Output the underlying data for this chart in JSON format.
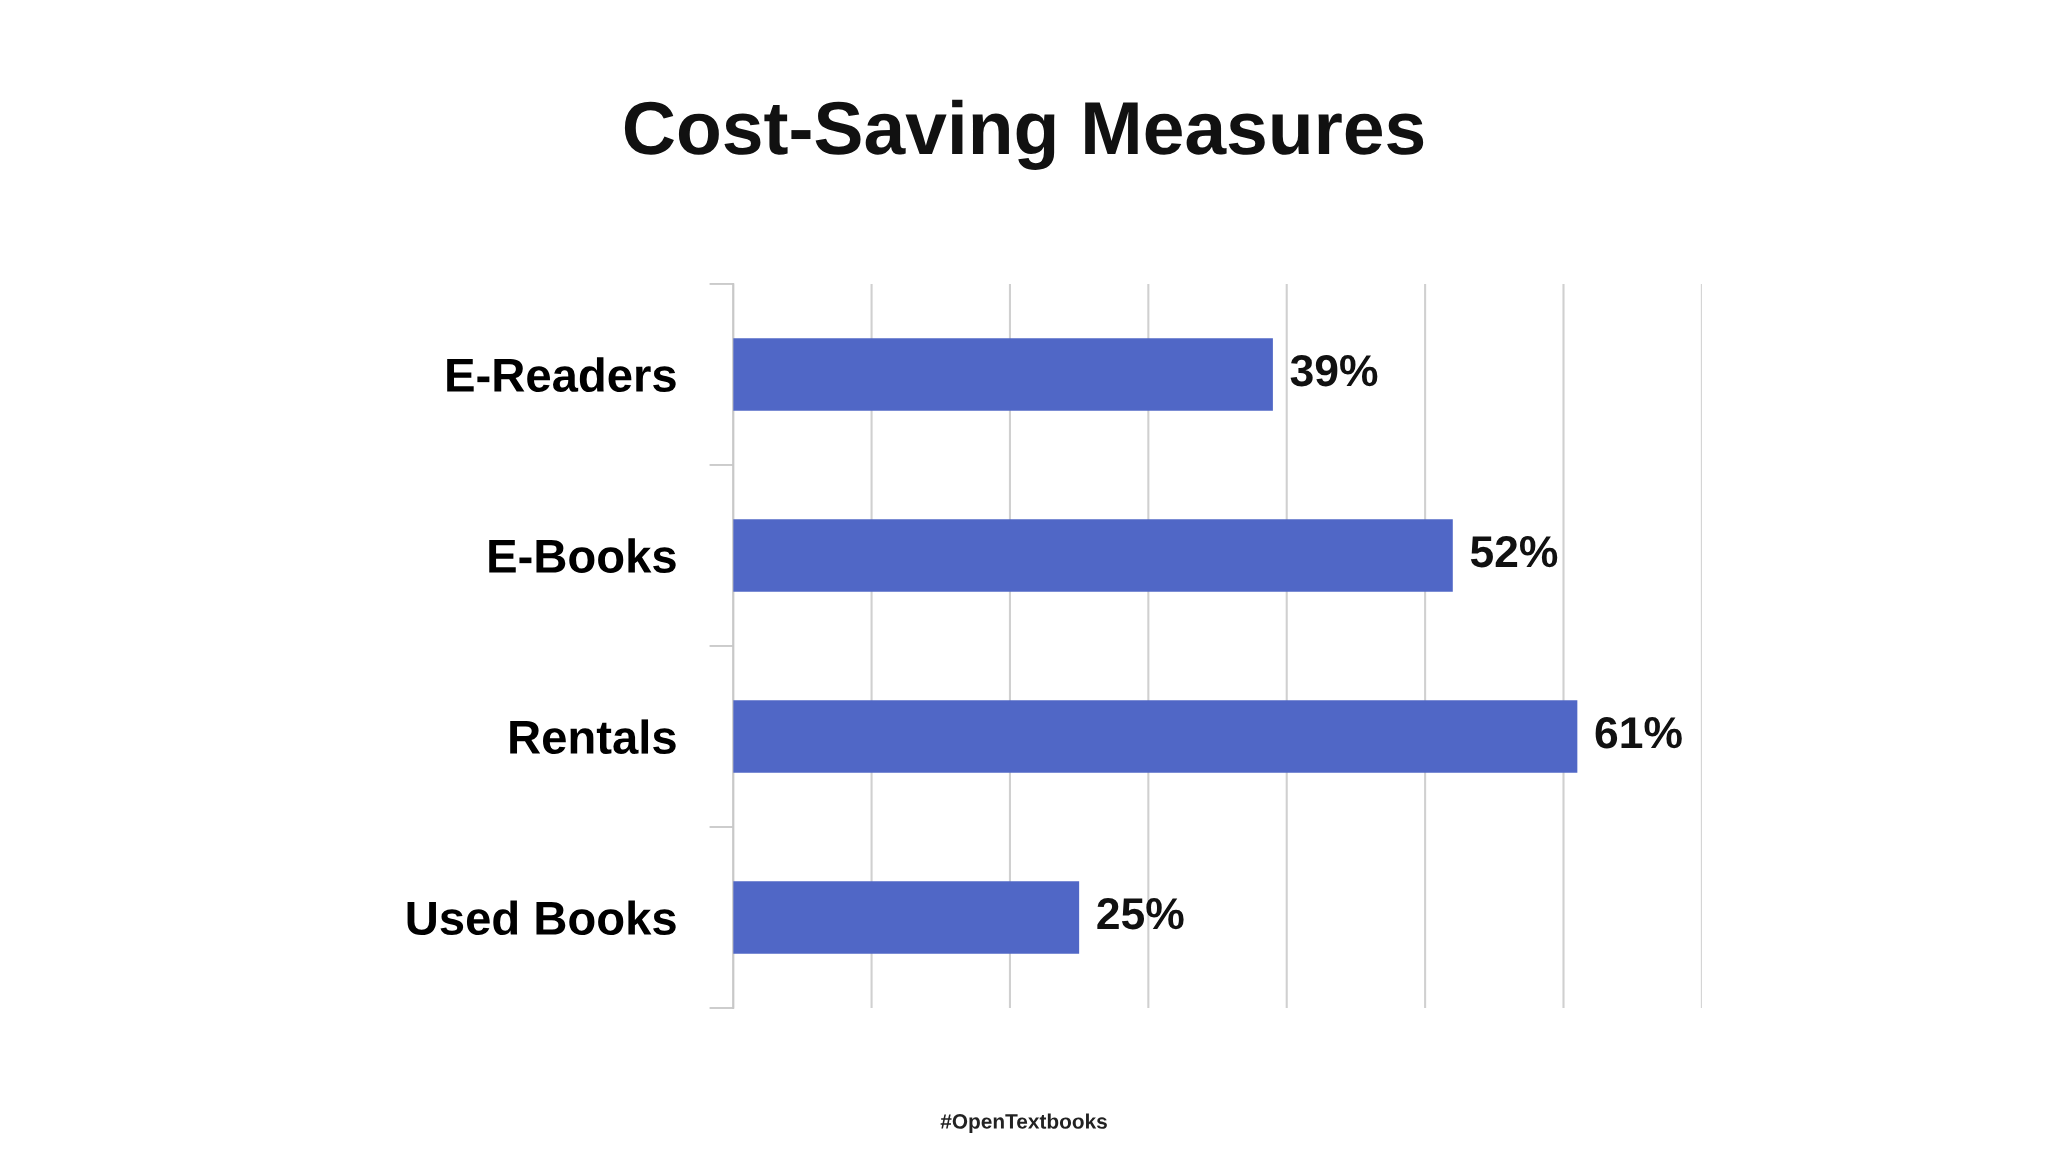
{
  "chart_data": {
    "type": "bar",
    "orientation": "horizontal",
    "title": "Cost-Saving Measures",
    "categories": [
      "E-Readers",
      "E-Books",
      "Rentals",
      "Used Books"
    ],
    "values": [
      39,
      52,
      61,
      25
    ],
    "value_labels": [
      "39%",
      "52%",
      "61%",
      "25%"
    ],
    "color": "#5067c6",
    "xlim": [
      0,
      70
    ],
    "xticks": [
      {
        "value": 0,
        "label": null
      },
      {
        "value": 10,
        "label": null
      },
      {
        "value": 20,
        "label": null
      },
      {
        "value": 30,
        "label": null
      },
      {
        "value": 40,
        "label": null
      },
      {
        "value": 50,
        "label": null
      },
      {
        "value": 60,
        "label": null
      },
      {
        "value": 70,
        "label": null
      }
    ],
    "grid": "x",
    "tick_labels": "y",
    "legend": false,
    "annotations": [
      "#OpenTextbooks"
    ]
  }
}
